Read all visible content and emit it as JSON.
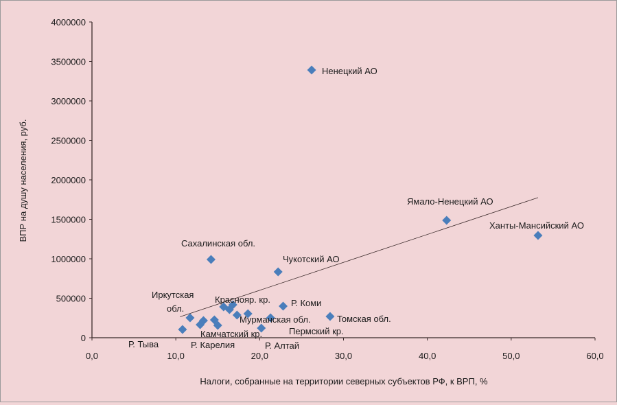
{
  "chart_data": {
    "type": "scatter",
    "title": "",
    "xlabel": "Налоги, собранные на территории северных субъектов РФ, к ВРП, %",
    "ylabel": "ВПР на душу населения, руб.",
    "xlim": [
      0,
      60
    ],
    "ylim": [
      0,
      4000000
    ],
    "xticks": [
      "0,0",
      "10,0",
      "20,0",
      "30,0",
      "40,0",
      "50,0",
      "60,0"
    ],
    "yticks": [
      "0",
      "500000",
      "1000000",
      "1500000",
      "2000000",
      "2500000",
      "3000000",
      "3500000",
      "4000000"
    ],
    "grid": false,
    "legend": "none",
    "marker_color": "#4a7ebb",
    "points": [
      {
        "x": 26.2,
        "y": 3391000
      },
      {
        "x": 42.3,
        "y": 1487000
      },
      {
        "x": 53.2,
        "y": 1296000
      },
      {
        "x": 14.2,
        "y": 991000
      },
      {
        "x": 22.2,
        "y": 835000
      },
      {
        "x": 22.8,
        "y": 400000
      },
      {
        "x": 28.4,
        "y": 270000
      },
      {
        "x": 11.7,
        "y": 252000
      },
      {
        "x": 10.8,
        "y": 104000
      },
      {
        "x": 12.9,
        "y": 165000
      },
      {
        "x": 13.3,
        "y": 217000
      },
      {
        "x": 14.6,
        "y": 226000
      },
      {
        "x": 15.0,
        "y": 157000
      },
      {
        "x": 15.7,
        "y": 391000
      },
      {
        "x": 16.4,
        "y": 357000
      },
      {
        "x": 16.8,
        "y": 417000
      },
      {
        "x": 17.3,
        "y": 287000
      },
      {
        "x": 18.6,
        "y": 304000
      },
      {
        "x": 20.2,
        "y": 122000
      },
      {
        "x": 21.3,
        "y": 252000
      }
    ],
    "trendline": {
      "x": [
        10.5,
        53.2
      ],
      "y": [
        265000,
        1775000
      ]
    },
    "annotations": [
      "Ненецкий АО",
      "Ямало-Ненецкий АО",
      "Ханты-Мансийский АО",
      "Сахалинская обл.",
      "Чукотский АО",
      "Р. Коми",
      "Томская обл.",
      "Иркутская",
      "обл.",
      "Р. Тыва",
      "Р. Карелия",
      "Камчатский кр.",
      "Р. Алтай",
      "Мурманская обл.",
      "Пермский кр.",
      "Краснояр. кр."
    ]
  }
}
